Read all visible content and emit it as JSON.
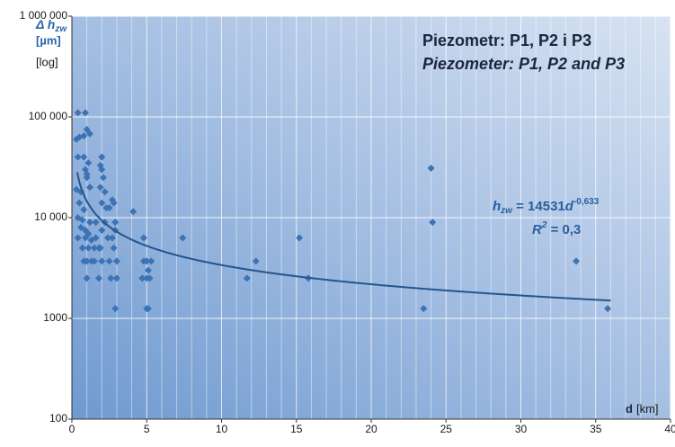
{
  "chart_data": {
    "type": "scatter",
    "title": "Piezometr: P1, P2 i P3",
    "subtitle": "Piezometer: P1, P2 and P3",
    "ylabel": {
      "symbol": "Δ h",
      "subscript": "zw",
      "unit": "[µm]",
      "scale": "[log]"
    },
    "xlabel": {
      "symbol": "d",
      "unit": "[km]"
    },
    "log_y": true,
    "grid": true,
    "color": "#3b73b5",
    "xlim": [
      0,
      40
    ],
    "xticks": [
      0,
      5,
      10,
      15,
      20,
      25,
      30,
      35,
      40
    ],
    "xminorticks": [
      1,
      2,
      3,
      4,
      6,
      7,
      8,
      9,
      11,
      12,
      13,
      14,
      16,
      17,
      18,
      19,
      21,
      22,
      23,
      24,
      26,
      27,
      28,
      29,
      31,
      32,
      33,
      34,
      36,
      37,
      38,
      39
    ],
    "ylim": [
      100,
      1000000
    ],
    "yticks": [
      {
        "value": 1000000,
        "label": "1 000 000"
      },
      {
        "value": 100000,
        "label": "100 000"
      },
      {
        "value": 10000,
        "label": "10 000"
      },
      1000,
      100
    ],
    "x": [
      0.4,
      0.9,
      0.3,
      0.5,
      0.8,
      1.0,
      1.2,
      0.4,
      0.8,
      1.1,
      0.9,
      1.0,
      1.2,
      0.3,
      0.6,
      1.0,
      0.5,
      0.8,
      0.4,
      0.7,
      1.2,
      0.6,
      0.9,
      1.1,
      0.4,
      0.9,
      1.3,
      0.7,
      1.1,
      0.8,
      1.0,
      1.3,
      1.0,
      1.5,
      1.5,
      1.6,
      1.6,
      1.8,
      2.0,
      1.9,
      2.0,
      2.1,
      1.9,
      2.2,
      2.0,
      2.3,
      2.2,
      2.0,
      2.4,
      1.9,
      2.0,
      1.8,
      2.5,
      2.6,
      2.7,
      2.8,
      2.9,
      2.9,
      2.7,
      2.8,
      3.0,
      3.0,
      2.9,
      2.5,
      4.1,
      4.8,
      4.8,
      5.0,
      4.7,
      5.0,
      5.3,
      5.1,
      5.2,
      5.0,
      5.1,
      7.4,
      11.7,
      12.3,
      15.2,
      15.8,
      23.5,
      24.0,
      24.1,
      33.7,
      35.8
    ],
    "values": [
      110000,
      110000,
      60000,
      63000,
      65000,
      75000,
      68000,
      40000,
      40000,
      35000,
      30000,
      25000,
      20000,
      19000,
      18000,
      27000,
      14000,
      12000,
      10000,
      9500,
      9000,
      8000,
      7500,
      6900,
      6300,
      6300,
      6000,
      5000,
      5000,
      3700,
      3700,
      3700,
      2500,
      5000,
      3700,
      6300,
      9000,
      5000,
      40000,
      33000,
      30000,
      25000,
      20000,
      18000,
      14000,
      12500,
      9000,
      7500,
      6300,
      5000,
      3700,
      2500,
      3700,
      2500,
      15000,
      14000,
      9000,
      7500,
      6300,
      5000,
      3700,
      2500,
      1250,
      12500,
      11500,
      6300,
      3700,
      3700,
      2500,
      2500,
      3700,
      3000,
      2500,
      1250,
      1250,
      6300,
      2500,
      3700,
      6300,
      2500,
      1250,
      31000,
      9000,
      3700,
      1250
    ],
    "trendline": {
      "coefficient": 14531,
      "exponent": -0.633,
      "xrange": [
        0.35,
        36
      ],
      "color": "#24558f",
      "equation": {
        "symbol": "h",
        "subscript": "zw",
        "prefix": " = 14531",
        "variable": "d",
        "exponent_label": "-0,633"
      },
      "r2": {
        "symbol": "R",
        "superscript": "2",
        "text": " = 0,3",
        "value": 0.3
      }
    }
  }
}
